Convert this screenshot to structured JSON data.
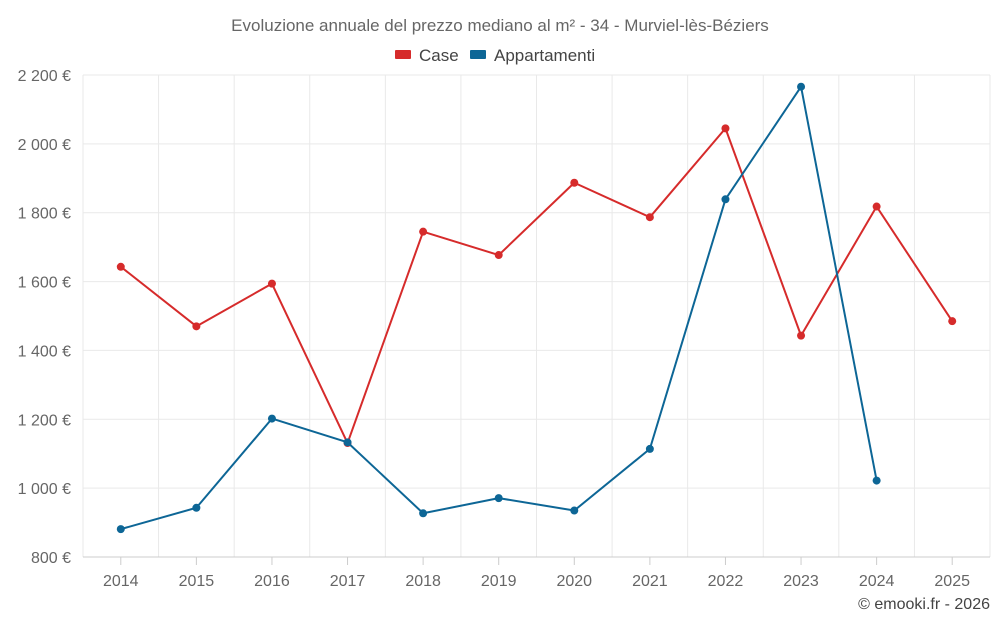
{
  "chart_data": {
    "type": "line",
    "title": "Evoluzione annuale del prezzo mediano al m² - 34 - Murviel-lès-Béziers",
    "categories": [
      "2014",
      "2015",
      "2016",
      "2017",
      "2018",
      "2019",
      "2020",
      "2021",
      "2022",
      "2023",
      "2024",
      "2025"
    ],
    "series": [
      {
        "name": "Case",
        "color": "#d62b2b",
        "values": [
          1643,
          1470,
          1594,
          1131,
          1745,
          1677,
          1887,
          1787,
          2045,
          1443,
          1818,
          1485
        ]
      },
      {
        "name": "Appartamenti",
        "color": "#0d6696",
        "values": [
          881,
          943,
          1202,
          1133,
          927,
          971,
          935,
          1114,
          1839,
          2166,
          1022,
          null
        ]
      }
    ],
    "yticks": [
      800,
      1000,
      1200,
      1400,
      1600,
      1800,
      2000,
      2200
    ],
    "ytick_labels": [
      "800 €",
      "1 000 €",
      "1 200 €",
      "1 400 €",
      "1 600 €",
      "1 800 €",
      "2 000 €",
      "2 200 €"
    ],
    "ylim": [
      800,
      2200
    ],
    "xlabel": "",
    "ylabel": "",
    "legend_position": "top-center",
    "grid": true
  },
  "credit": "© emooki.fr - 2026"
}
